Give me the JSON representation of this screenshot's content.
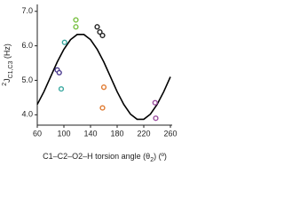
{
  "chart_data": {
    "type": "scatter",
    "ylabel_parts": [
      "2",
      "J",
      "C1,C3",
      " (Hz)"
    ],
    "xlabel_parts": [
      "C1–C2–O2–H torsion angle (θ",
      "2",
      ") (º)"
    ],
    "xlim": [
      60,
      260
    ],
    "xticks": [
      60,
      100,
      140,
      180,
      220,
      260
    ],
    "ylim": [
      3.7,
      7.2
    ],
    "yticks": [
      {
        "value": 4,
        "label": "4.0"
      },
      {
        "value": 5,
        "label": "5.0"
      },
      {
        "value": 6,
        "label": "6.0"
      },
      {
        "value": 7,
        "label": "7.0"
      }
    ],
    "curve": {
      "color": "#000000",
      "x": [
        60,
        70,
        80,
        90,
        100,
        110,
        120,
        130,
        140,
        150,
        160,
        170,
        180,
        190,
        200,
        210,
        220,
        230,
        240,
        250,
        260
      ],
      "values": [
        4.3,
        4.67,
        5.1,
        5.53,
        5.9,
        6.18,
        6.33,
        6.33,
        6.18,
        5.9,
        5.53,
        5.1,
        4.67,
        4.3,
        4.02,
        3.87,
        3.87,
        4.02,
        4.3,
        4.67,
        5.1
      ]
    },
    "series": [
      {
        "color": "#4b3b8f",
        "x": [
          90,
          93
        ],
        "values": [
          5.3,
          5.22
        ]
      },
      {
        "color": "#3aa8a0",
        "x": [
          96,
          101
        ],
        "values": [
          4.75,
          6.1
        ]
      },
      {
        "color": "#7ac143",
        "x": [
          118,
          118
        ],
        "values": [
          6.75,
          6.55
        ]
      },
      {
        "color": "#222222",
        "x": [
          150,
          154,
          158
        ],
        "values": [
          6.55,
          6.4,
          6.3
        ]
      },
      {
        "color": "#e07a30",
        "x": [
          160,
          158
        ],
        "values": [
          4.8,
          4.2
        ]
      },
      {
        "color": "#9b4fa0",
        "x": [
          237,
          238
        ],
        "values": [
          4.35,
          3.9
        ]
      }
    ]
  }
}
